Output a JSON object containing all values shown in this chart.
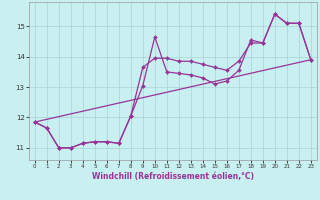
{
  "xlabel": "Windchill (Refroidissement éolien,°C)",
  "bg_color": "#c8f0f0",
  "grid_color": "#b0d8d8",
  "line_color": "#993399",
  "xlim": [
    -0.5,
    23.5
  ],
  "ylim": [
    10.6,
    15.8
  ],
  "xticks": [
    0,
    1,
    2,
    3,
    4,
    5,
    6,
    7,
    8,
    9,
    10,
    11,
    12,
    13,
    14,
    15,
    16,
    17,
    18,
    19,
    20,
    21,
    22,
    23
  ],
  "yticks": [
    11,
    12,
    13,
    14,
    15
  ],
  "line1_x": [
    0,
    1,
    2,
    3,
    4,
    5,
    6,
    7,
    8,
    9,
    10,
    11,
    12,
    13,
    14,
    15,
    16,
    17,
    18,
    19,
    20,
    21,
    22,
    23
  ],
  "line1_y": [
    11.85,
    11.65,
    11.0,
    11.0,
    11.15,
    11.2,
    11.2,
    11.15,
    12.05,
    13.05,
    14.65,
    13.5,
    13.45,
    13.4,
    13.3,
    13.1,
    13.2,
    13.55,
    14.55,
    14.45,
    15.4,
    15.1,
    15.1,
    13.9
  ],
  "line2_x": [
    0,
    1,
    2,
    3,
    4,
    5,
    6,
    7,
    8,
    9,
    10,
    11,
    12,
    13,
    14,
    15,
    16,
    17,
    18,
    19,
    20,
    21,
    22,
    23
  ],
  "line2_y": [
    11.85,
    11.65,
    11.0,
    11.0,
    11.15,
    11.2,
    11.2,
    11.15,
    12.05,
    13.65,
    13.95,
    13.95,
    13.85,
    13.85,
    13.75,
    13.65,
    13.55,
    13.85,
    14.45,
    14.45,
    15.4,
    15.1,
    15.1,
    13.9
  ],
  "line3_x": [
    0,
    23
  ],
  "line3_y": [
    11.85,
    13.9
  ]
}
